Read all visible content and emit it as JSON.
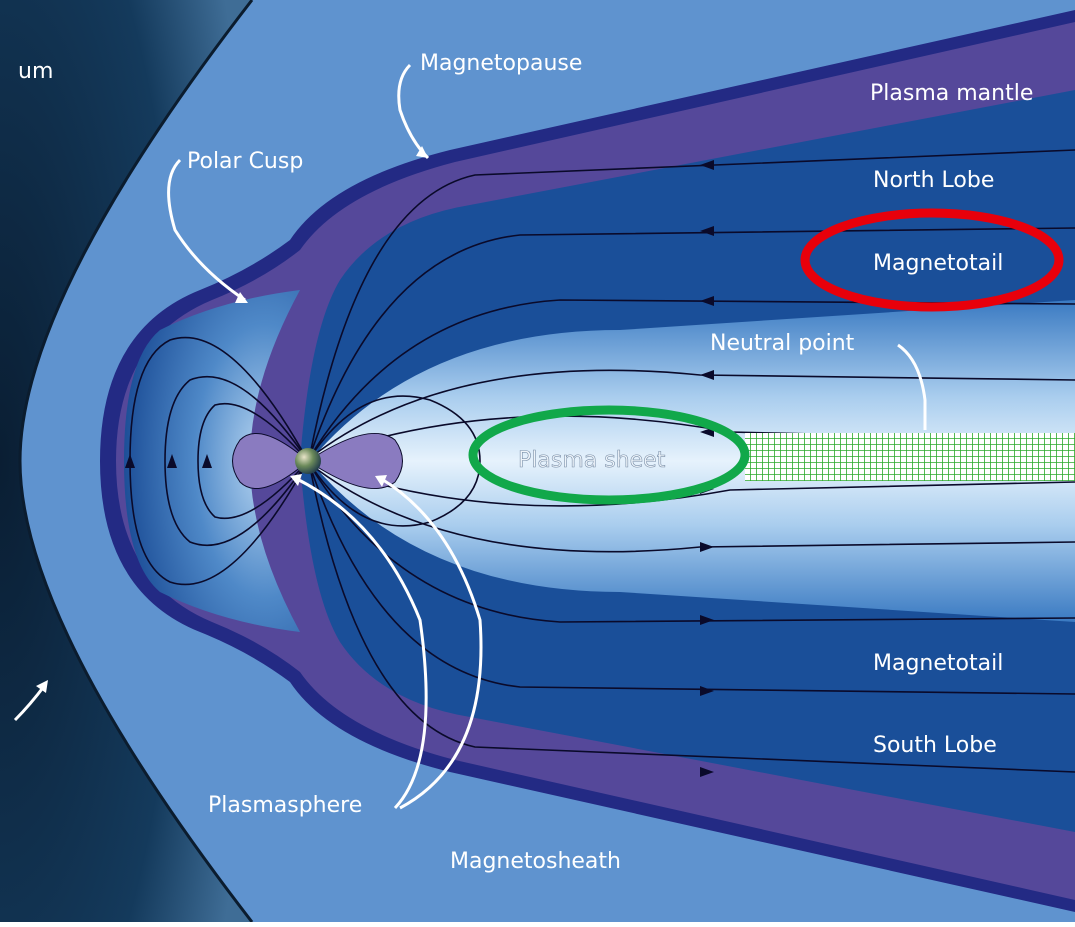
{
  "labels": {
    "corner": "um",
    "magnetopause": "Magnetopause",
    "plasma_mantle": "Plasma mantle",
    "polar_cusp": "Polar Cusp",
    "north_lobe": "North Lobe",
    "magnetotail_upper": "Magnetotail",
    "neutral_point": "Neutral point",
    "plasma_sheet": "Plasma sheet",
    "magnetotail_lower": "Magnetotail",
    "south_lobe": "South Lobe",
    "plasmasphere": "Plasmasphere",
    "magnetosheath": "Magnetosheath"
  },
  "colors": {
    "space": "#0b2238",
    "magnetosheath": "#5f93cf",
    "magnetopause": "#232a84",
    "mantle": "#55489a",
    "lobe": "#1a4f99",
    "inner": "#2d6bb6",
    "plasma_sheet": "#cfe4f8",
    "plasmasphere": "#8a7bc0",
    "red_marker": "#e8000b",
    "green_marker": "#11a84a",
    "grid_marker": "#2aa82a"
  }
}
